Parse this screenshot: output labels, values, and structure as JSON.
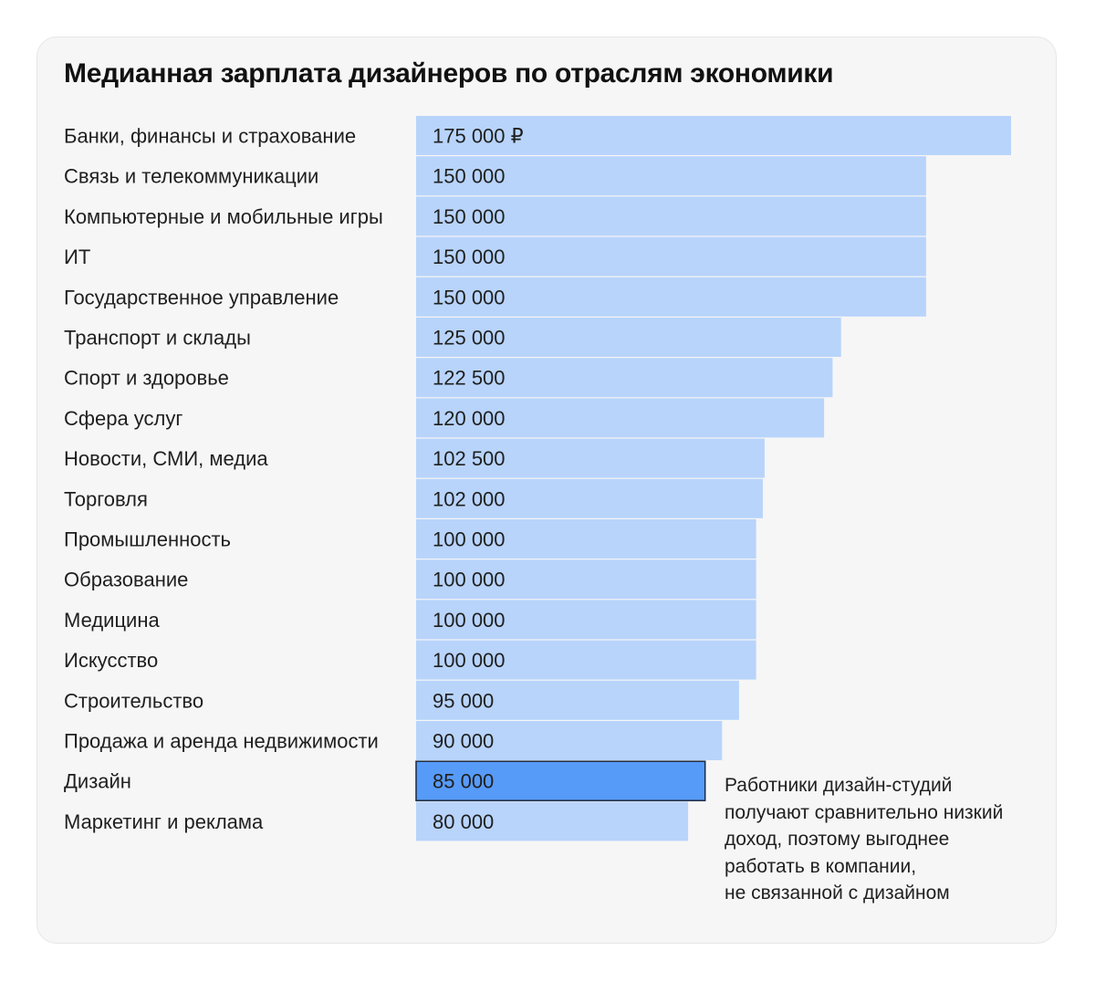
{
  "chart_data": {
    "type": "bar",
    "orientation": "horizontal",
    "title": "Медианная зарплата дизайнеров по отраслям экономики",
    "categories": [
      "Банки, финансы и страхование",
      "Связь и телекоммуникации",
      "Компьютерные и мобильные игры",
      "ИТ",
      "Государственное управление",
      "Транспорт и склады",
      "Спорт и здоровье",
      "Сфера услуг",
      "Новости, СМИ, медиа",
      "Торговля",
      "Промышленность",
      "Образование",
      "Медицина",
      "Искусство",
      "Строительство",
      "Продажа и аренда недвижимости",
      "Дизайн",
      "Маркетинг и реклама"
    ],
    "values": [
      175000,
      150000,
      150000,
      150000,
      150000,
      125000,
      122500,
      120000,
      102500,
      102000,
      100000,
      100000,
      100000,
      100000,
      95000,
      90000,
      85000,
      80000
    ],
    "value_labels": [
      "175 000 ₽",
      "150 000",
      "150 000",
      "150 000",
      "150 000",
      "125 000",
      "122 500",
      "120 000",
      "102 500",
      "102 000",
      "100 000",
      "100 000",
      "100 000",
      "100 000",
      "95 000",
      "90 000",
      "85 000",
      "80 000"
    ],
    "highlighted_index": 16,
    "annotation": [
      "Работники дизайн-студий",
      "получают сравнительно низкий",
      "доход, поэтому выгоднее",
      "работать в компании,",
      "не связанной с дизайном"
    ],
    "xlim": [
      0,
      175000
    ],
    "grid": false,
    "legend": "none"
  },
  "colors": {
    "bar": "#b8d4fb",
    "bar_highlight": "#579bf8",
    "highlight_border": "#1c2a3f",
    "card_background": "#f6f6f6",
    "text": "#1f1f1f"
  }
}
